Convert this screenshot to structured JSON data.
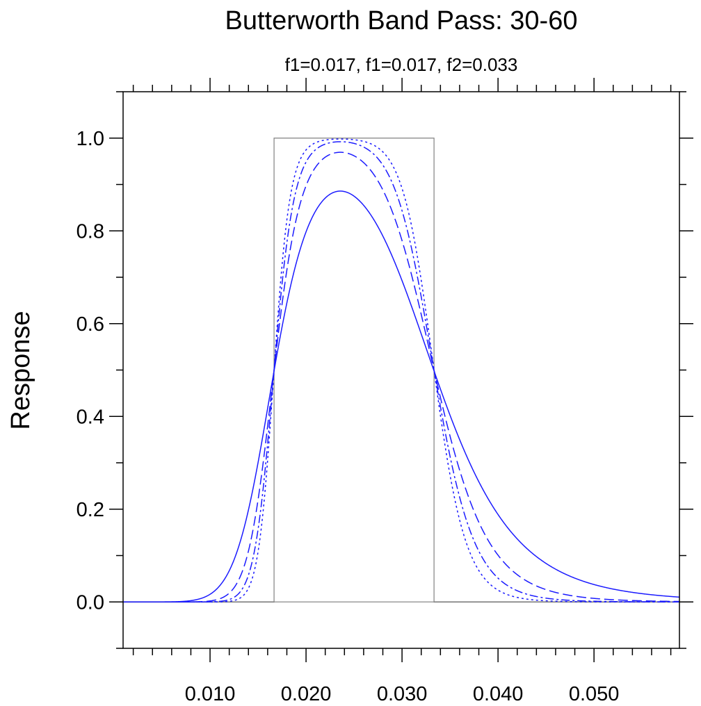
{
  "chart_data": {
    "type": "line",
    "title": "Butterworth Band Pass: 30-60",
    "subtitle": "f1=0.017, f1=0.017, f2=0.033",
    "xlabel": "",
    "ylabel": "Response",
    "xlim": [
      0.00094,
      0.0589
    ],
    "ylim": [
      -0.1,
      1.1
    ],
    "xticks": [
      0.01,
      0.02,
      0.03,
      0.04,
      0.05
    ],
    "xtick_labels": [
      "0.010",
      "0.020",
      "0.030",
      "0.040",
      "0.050"
    ],
    "yticks": [
      0.0,
      0.2,
      0.4,
      0.6,
      0.8,
      1.0
    ],
    "ytick_labels": [
      "0.0",
      "0.2",
      "0.4",
      "0.6",
      "0.8",
      "1.0"
    ],
    "grid": false,
    "f1": 0.016667,
    "f2": 0.033333,
    "ideal_response": {
      "color": "#808080",
      "x": [
        0.00094,
        0.016667,
        0.016667,
        0.033333,
        0.033333,
        0.0589
      ],
      "y": [
        0,
        0,
        1,
        1,
        0,
        0
      ]
    },
    "zero_line": {
      "color": "#b0b0b0",
      "y": 0
    },
    "series": [
      {
        "order": 4,
        "style": "solid",
        "color": "#1a1aff"
      },
      {
        "order": 6,
        "style": "dashed",
        "color": "#1a1aff"
      },
      {
        "order": 8,
        "style": "dash-dot",
        "color": "#1a1aff"
      },
      {
        "order": 10,
        "style": "dotted",
        "color": "#1a1aff"
      }
    ]
  }
}
